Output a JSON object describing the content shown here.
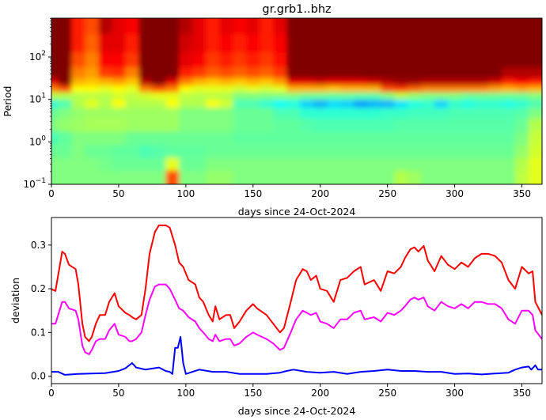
{
  "chart_data": [
    {
      "type": "heatmap",
      "title": "gr.grb1..bhz",
      "xlabel": "days since 24-Oct-2024",
      "ylabel": "Period",
      "xlim": [
        0,
        365
      ],
      "ylim": [
        0.1,
        820
      ],
      "yscale": "log",
      "colormap": "jet",
      "xticks": [
        "0",
        "50",
        "100",
        "150",
        "200",
        "250",
        "300",
        "350"
      ],
      "yticks": [
        {
          "base": "10",
          "exp": "−1",
          "value": 0.1
        },
        {
          "base": "10",
          "exp": "0",
          "value": 1
        },
        {
          "base": "10",
          "exp": "1",
          "value": 10
        },
        {
          "base": "10",
          "exp": "2",
          "value": 100
        }
      ],
      "x": [
        0,
        10,
        20,
        30,
        40,
        50,
        60,
        70,
        80,
        90,
        100,
        110,
        120,
        130,
        140,
        150,
        160,
        170,
        180,
        190,
        200,
        210,
        220,
        230,
        240,
        250,
        260,
        270,
        280,
        290,
        300,
        310,
        320,
        330,
        340,
        350,
        360
      ],
      "y": [
        600,
        200,
        80,
        40,
        25,
        18,
        12,
        8,
        5,
        2.5,
        1.2,
        0.6,
        0.3,
        0.15
      ],
      "z_columns": [
        [
          1,
          1,
          1,
          1,
          0.9,
          0.75,
          0.55,
          0.42,
          0.48,
          0.5,
          0.45,
          0.48,
          0.5,
          0.5
        ],
        [
          1,
          1,
          1,
          1,
          1,
          0.8,
          0.55,
          0.45,
          0.5,
          0.52,
          0.47,
          0.48,
          0.5,
          0.5
        ],
        [
          0.85,
          0.85,
          0.8,
          0.75,
          0.7,
          0.62,
          0.55,
          0.55,
          0.52,
          0.53,
          0.5,
          0.5,
          0.5,
          0.5
        ],
        [
          0.8,
          0.78,
          0.75,
          0.72,
          0.68,
          0.62,
          0.56,
          0.6,
          0.53,
          0.54,
          0.5,
          0.48,
          0.5,
          0.5
        ],
        [
          0.95,
          0.9,
          0.88,
          0.82,
          0.7,
          0.6,
          0.55,
          0.55,
          0.53,
          0.54,
          0.5,
          0.48,
          0.49,
          0.5
        ],
        [
          0.9,
          0.9,
          0.88,
          0.83,
          0.72,
          0.62,
          0.58,
          0.62,
          0.53,
          0.54,
          0.5,
          0.47,
          0.48,
          0.5
        ],
        [
          0.88,
          0.85,
          0.82,
          0.75,
          0.68,
          0.6,
          0.56,
          0.55,
          0.53,
          0.53,
          0.48,
          0.47,
          0.48,
          0.5
        ],
        [
          1,
          1,
          1,
          1,
          0.95,
          0.75,
          0.58,
          0.55,
          0.53,
          0.53,
          0.48,
          0.45,
          0.48,
          0.5
        ],
        [
          1,
          1,
          1,
          1,
          1,
          0.8,
          0.6,
          0.55,
          0.53,
          0.53,
          0.48,
          0.46,
          0.48,
          0.5
        ],
        [
          1,
          1,
          1,
          1,
          0.9,
          0.75,
          0.6,
          0.62,
          0.53,
          0.53,
          0.48,
          0.47,
          0.6,
          0.8
        ],
        [
          0.95,
          0.92,
          0.9,
          0.85,
          0.75,
          0.62,
          0.56,
          0.55,
          0.5,
          0.5,
          0.48,
          0.47,
          0.48,
          0.5
        ],
        [
          0.9,
          0.9,
          0.88,
          0.82,
          0.7,
          0.6,
          0.55,
          0.55,
          0.5,
          0.5,
          0.48,
          0.47,
          0.48,
          0.5
        ],
        [
          0.85,
          0.85,
          0.82,
          0.78,
          0.68,
          0.6,
          0.56,
          0.62,
          0.5,
          0.5,
          0.48,
          0.48,
          0.5,
          0.52
        ],
        [
          0.9,
          0.88,
          0.85,
          0.8,
          0.7,
          0.6,
          0.55,
          0.58,
          0.5,
          0.5,
          0.48,
          0.48,
          0.5,
          0.52
        ],
        [
          0.88,
          0.85,
          0.82,
          0.78,
          0.68,
          0.58,
          0.5,
          0.45,
          0.48,
          0.48,
          0.47,
          0.48,
          0.5,
          0.5
        ],
        [
          0.9,
          0.88,
          0.85,
          0.8,
          0.7,
          0.6,
          0.5,
          0.45,
          0.48,
          0.48,
          0.47,
          0.48,
          0.5,
          0.5
        ],
        [
          0.85,
          0.85,
          0.82,
          0.78,
          0.68,
          0.58,
          0.5,
          0.42,
          0.48,
          0.48,
          0.47,
          0.48,
          0.5,
          0.5
        ],
        [
          0.9,
          0.88,
          0.86,
          0.82,
          0.72,
          0.6,
          0.5,
          0.38,
          0.45,
          0.47,
          0.47,
          0.48,
          0.5,
          0.5
        ],
        [
          1,
          1,
          1,
          1,
          0.9,
          0.7,
          0.5,
          0.4,
          0.45,
          0.47,
          0.47,
          0.48,
          0.5,
          0.5
        ],
        [
          1,
          1,
          1,
          1,
          0.9,
          0.7,
          0.48,
          0.33,
          0.42,
          0.46,
          0.47,
          0.48,
          0.5,
          0.5
        ],
        [
          1,
          1,
          1,
          1,
          0.92,
          0.7,
          0.48,
          0.3,
          0.42,
          0.45,
          0.47,
          0.48,
          0.5,
          0.5
        ],
        [
          1,
          1,
          1,
          1,
          0.9,
          0.68,
          0.47,
          0.34,
          0.42,
          0.45,
          0.47,
          0.48,
          0.5,
          0.5
        ],
        [
          1,
          1,
          1,
          1,
          0.9,
          0.7,
          0.47,
          0.33,
          0.42,
          0.45,
          0.47,
          0.48,
          0.5,
          0.5
        ],
        [
          1,
          1,
          1,
          1,
          0.9,
          0.7,
          0.46,
          0.28,
          0.42,
          0.45,
          0.47,
          0.48,
          0.5,
          0.5
        ],
        [
          1,
          1,
          1,
          1,
          0.92,
          0.7,
          0.46,
          0.3,
          0.42,
          0.45,
          0.47,
          0.48,
          0.5,
          0.5
        ],
        [
          1,
          1,
          1,
          1,
          0.95,
          0.8,
          0.5,
          0.3,
          0.43,
          0.45,
          0.47,
          0.48,
          0.5,
          0.5
        ],
        [
          1,
          1,
          1,
          1,
          0.97,
          0.82,
          0.55,
          0.35,
          0.43,
          0.46,
          0.47,
          0.48,
          0.5,
          0.55
        ],
        [
          1,
          1,
          1,
          1,
          0.97,
          0.78,
          0.52,
          0.4,
          0.44,
          0.46,
          0.47,
          0.48,
          0.5,
          0.53
        ],
        [
          1,
          1,
          1,
          1,
          0.95,
          0.75,
          0.5,
          0.42,
          0.44,
          0.46,
          0.47,
          0.48,
          0.5,
          0.5
        ],
        [
          1,
          1,
          1,
          1,
          0.95,
          0.75,
          0.5,
          0.33,
          0.44,
          0.46,
          0.47,
          0.48,
          0.5,
          0.5
        ],
        [
          1,
          1,
          1,
          1,
          0.95,
          0.75,
          0.5,
          0.42,
          0.45,
          0.46,
          0.47,
          0.48,
          0.5,
          0.5
        ],
        [
          1,
          1,
          1,
          1,
          0.95,
          0.75,
          0.48,
          0.4,
          0.45,
          0.46,
          0.47,
          0.48,
          0.5,
          0.5
        ],
        [
          1,
          1,
          1,
          1,
          0.95,
          0.75,
          0.48,
          0.42,
          0.45,
          0.46,
          0.47,
          0.48,
          0.5,
          0.5
        ],
        [
          1,
          1,
          1,
          1,
          0.92,
          0.72,
          0.48,
          0.42,
          0.45,
          0.46,
          0.47,
          0.48,
          0.5,
          0.5
        ],
        [
          1,
          1,
          1,
          0.95,
          0.85,
          0.7,
          0.48,
          0.4,
          0.45,
          0.46,
          0.47,
          0.48,
          0.5,
          0.5
        ],
        [
          1,
          1,
          1,
          0.95,
          0.88,
          0.72,
          0.48,
          0.42,
          0.46,
          0.48,
          0.5,
          0.52,
          0.55,
          0.56
        ],
        [
          1,
          1,
          1,
          0.95,
          0.85,
          0.7,
          0.5,
          0.45,
          0.5,
          0.55,
          0.57,
          0.58,
          0.6,
          0.6
        ]
      ]
    },
    {
      "type": "line",
      "xlabel": "days since 24-Oct-2024",
      "ylabel": "deviation",
      "xlim": [
        0,
        365
      ],
      "ylim": [
        -0.017,
        0.363
      ],
      "xticks": [
        "0",
        "50",
        "100",
        "150",
        "200",
        "250",
        "300",
        "350"
      ],
      "yticks": [
        "0.0",
        "0.1",
        "0.2",
        "0.3"
      ],
      "series": [
        {
          "color": "#ff0000",
          "x": [
            0,
            3,
            8,
            10,
            13,
            18,
            20,
            23,
            25,
            28,
            30,
            33,
            36,
            40,
            43,
            47,
            50,
            55,
            58,
            60,
            63,
            67,
            70,
            73,
            77,
            80,
            85,
            88,
            92,
            95,
            98,
            102,
            107,
            110,
            113,
            117,
            120,
            122,
            125,
            130,
            133,
            136,
            140,
            145,
            150,
            153,
            160,
            165,
            170,
            173,
            178,
            182,
            187,
            190,
            193,
            197,
            200,
            205,
            210,
            215,
            220,
            225,
            230,
            233,
            240,
            245,
            250,
            255,
            260,
            263,
            267,
            270,
            273,
            277,
            280,
            285,
            290,
            295,
            300,
            305,
            310,
            315,
            320,
            325,
            330,
            335,
            340,
            345,
            350,
            355,
            358,
            360,
            365
          ],
          "y": [
            0.199,
            0.195,
            0.285,
            0.28,
            0.255,
            0.245,
            0.21,
            0.12,
            0.09,
            0.08,
            0.09,
            0.12,
            0.14,
            0.14,
            0.17,
            0.19,
            0.16,
            0.145,
            0.14,
            0.135,
            0.13,
            0.14,
            0.2,
            0.28,
            0.33,
            0.345,
            0.345,
            0.34,
            0.3,
            0.26,
            0.25,
            0.22,
            0.21,
            0.18,
            0.17,
            0.14,
            0.125,
            0.16,
            0.13,
            0.14,
            0.14,
            0.11,
            0.125,
            0.15,
            0.165,
            0.155,
            0.14,
            0.12,
            0.1,
            0.11,
            0.17,
            0.22,
            0.245,
            0.24,
            0.22,
            0.23,
            0.2,
            0.195,
            0.17,
            0.22,
            0.225,
            0.24,
            0.25,
            0.21,
            0.22,
            0.195,
            0.24,
            0.235,
            0.25,
            0.27,
            0.29,
            0.295,
            0.285,
            0.298,
            0.265,
            0.24,
            0.275,
            0.255,
            0.245,
            0.26,
            0.25,
            0.27,
            0.28,
            0.28,
            0.275,
            0.26,
            0.22,
            0.2,
            0.25,
            0.235,
            0.24,
            0.17,
            0.14
          ]
        },
        {
          "color": "#ff00ff",
          "x": [
            0,
            3,
            8,
            10,
            13,
            18,
            20,
            23,
            25,
            28,
            30,
            33,
            36,
            40,
            43,
            47,
            50,
            55,
            58,
            60,
            63,
            67,
            70,
            73,
            77,
            80,
            85,
            88,
            92,
            95,
            98,
            102,
            107,
            110,
            113,
            117,
            120,
            122,
            125,
            130,
            133,
            136,
            140,
            145,
            150,
            153,
            160,
            165,
            170,
            173,
            178,
            182,
            187,
            190,
            193,
            197,
            200,
            205,
            210,
            215,
            220,
            225,
            230,
            233,
            240,
            245,
            250,
            255,
            260,
            263,
            267,
            270,
            273,
            277,
            280,
            285,
            290,
            295,
            300,
            305,
            310,
            315,
            320,
            325,
            330,
            335,
            340,
            345,
            350,
            355,
            358,
            360,
            365
          ],
          "y": [
            0.12,
            0.12,
            0.17,
            0.17,
            0.155,
            0.15,
            0.13,
            0.07,
            0.055,
            0.05,
            0.06,
            0.08,
            0.085,
            0.085,
            0.105,
            0.12,
            0.095,
            0.09,
            0.08,
            0.08,
            0.085,
            0.1,
            0.14,
            0.175,
            0.205,
            0.21,
            0.21,
            0.2,
            0.175,
            0.155,
            0.15,
            0.135,
            0.125,
            0.11,
            0.1,
            0.085,
            0.08,
            0.095,
            0.08,
            0.085,
            0.085,
            0.07,
            0.075,
            0.09,
            0.1,
            0.095,
            0.085,
            0.075,
            0.06,
            0.065,
            0.1,
            0.13,
            0.15,
            0.145,
            0.14,
            0.145,
            0.125,
            0.12,
            0.11,
            0.13,
            0.13,
            0.145,
            0.15,
            0.13,
            0.135,
            0.125,
            0.145,
            0.14,
            0.15,
            0.16,
            0.175,
            0.18,
            0.175,
            0.18,
            0.16,
            0.15,
            0.17,
            0.16,
            0.155,
            0.165,
            0.155,
            0.17,
            0.17,
            0.165,
            0.165,
            0.155,
            0.13,
            0.12,
            0.15,
            0.15,
            0.14,
            0.105,
            0.085
          ]
        },
        {
          "color": "#0000ff",
          "x": [
            0,
            5,
            10,
            20,
            40,
            50,
            55,
            60,
            63,
            70,
            80,
            85,
            88,
            90,
            92,
            94,
            96,
            98,
            100,
            110,
            120,
            130,
            140,
            160,
            170,
            175,
            180,
            190,
            200,
            210,
            220,
            230,
            240,
            250,
            260,
            270,
            280,
            290,
            300,
            310,
            320,
            330,
            340,
            345,
            350,
            355,
            357,
            360,
            362,
            365
          ],
          "y": [
            0.01,
            0.01,
            0.003,
            0.005,
            0.007,
            0.012,
            0.018,
            0.03,
            0.02,
            0.015,
            0.02,
            0.012,
            0.01,
            0.005,
            0.065,
            0.065,
            0.09,
            0.03,
            0.005,
            0.015,
            0.01,
            0.01,
            0.005,
            0.005,
            0.008,
            0.012,
            0.015,
            0.01,
            0.008,
            0.01,
            0.005,
            0.01,
            0.012,
            0.015,
            0.012,
            0.012,
            0.01,
            0.01,
            0.005,
            0.006,
            0.004,
            0.006,
            0.008,
            0.015,
            0.02,
            0.022,
            0.015,
            0.025,
            0.015,
            0.015
          ]
        }
      ]
    }
  ]
}
